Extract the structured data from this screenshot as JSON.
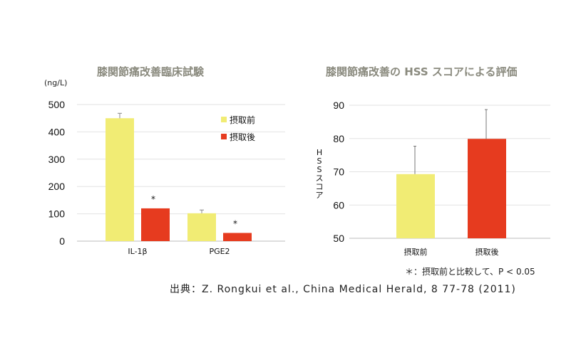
{
  "chart_data": [
    {
      "type": "bar",
      "title": "膝関節痛改善臨床試験",
      "unit_label": "(ng/L)",
      "categories": [
        "IL-1β",
        "PGE2"
      ],
      "ylim": [
        0,
        500
      ],
      "yticks": [
        "0",
        "100",
        "200",
        "300",
        "400",
        "500"
      ],
      "grid": true,
      "legend_position": "top-right",
      "series": [
        {
          "name": "摂取前",
          "color": "#f1ec74",
          "values": [
            450,
            102
          ],
          "errors": [
            18,
            12
          ]
        },
        {
          "name": "摂取後",
          "color": "#e63b1f",
          "values": [
            120,
            30
          ],
          "errors": [
            1,
            1
          ]
        }
      ],
      "annotations": [
        "*",
        "*"
      ]
    },
    {
      "type": "bar",
      "title": "膝関節痛改善の HSS スコアによる評価",
      "ylabel": "HSSスコア",
      "categories": [
        "摂取前",
        "摂取後"
      ],
      "ylim": [
        50,
        90
      ],
      "yticks": [
        "50",
        "60",
        "70",
        "80",
        "90"
      ],
      "grid": true,
      "colors": [
        "#f1ec74",
        "#e63b1f"
      ],
      "values": [
        69.3,
        79.9
      ],
      "errors": [
        8.4,
        8.8
      ]
    }
  ],
  "note": "＊：摂取前と比較して、P < 0.05",
  "source": "出典：Z. Rongkui et al., China Medical Herald, 8 77-78 (2011)"
}
